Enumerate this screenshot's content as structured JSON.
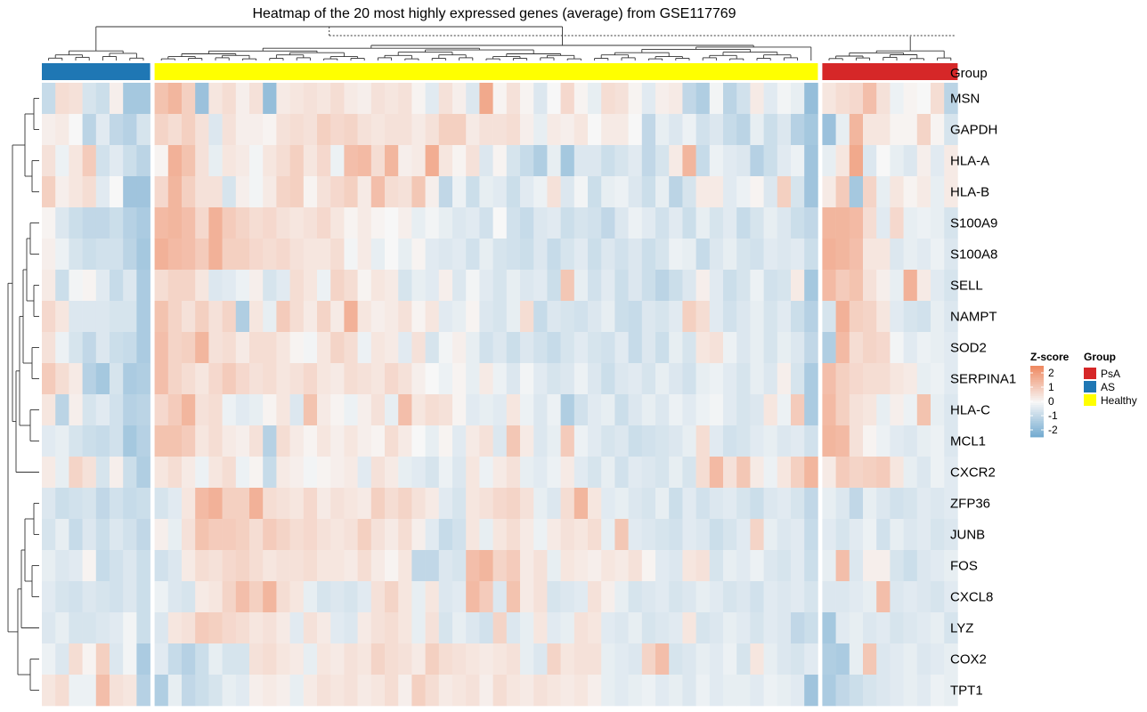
{
  "chart_data": {
    "type": "heatmap",
    "title": "Heatmap of the 20 most highly expressed genes (average) from GSE117769",
    "rows": [
      "MSN",
      "GAPDH",
      "HLA-A",
      "HLA-B",
      "S100A9",
      "S100A8",
      "SELL",
      "NAMPT",
      "SOD2",
      "SERPINA1",
      "HLA-C",
      "MCL1",
      "CXCR2",
      "ZFP36",
      "JUNB",
      "FOS",
      "CXCL8",
      "LYZ",
      "COX2",
      "TPT1"
    ],
    "annotation": {
      "label": "Group",
      "groups": [
        {
          "name": "AS",
          "n_samples": 8,
          "color": "#1F77B4"
        },
        {
          "name": "Healthy",
          "n_samples": 49,
          "color": "#FFFF00"
        },
        {
          "name": "PsA",
          "n_samples": 10,
          "color": "#D62728"
        }
      ]
    },
    "value_range": [
      -2.5,
      2.5
    ],
    "colors": {
      "low": "#6FA8CF",
      "mid": "#F7F7F7",
      "high": "#EF8A62"
    },
    "values": [
      [
        -0.9,
        0.6,
        0.5,
        -0.6,
        -0.8,
        0.2,
        -1.5,
        -1.5,
        1.2,
        1.5,
        0.9,
        -1.7,
        0.4,
        0.6,
        0.2,
        0.5,
        -1.8,
        0.3,
        0.4,
        0.5,
        0.4,
        0.6,
        0.3,
        0.2,
        0.5,
        0.4,
        0.5,
        0.1,
        -0.4,
        0.5,
        0.2,
        -0.5,
        1.8,
        0.1,
        0.5,
        0.1,
        -0.5,
        0.0,
        0.7,
        0.1,
        -0.3,
        0.6,
        0.5,
        0.1,
        -0.4,
        0.2,
        0.3,
        -1.0,
        -1.3,
        -0.1,
        -1.1,
        -0.7,
        0.3,
        -0.4,
        -0.1,
        -0.3,
        -1.8,
        0.4,
        0.6,
        0.7,
        1.3,
        0.5,
        -0.2,
        0.1,
        0.0,
        0.6,
        -1.1
      ],
      [
        0.2,
        0.3,
        0.0,
        -1.1,
        -0.4,
        -1.0,
        -1.2,
        -0.6,
        0.8,
        0.6,
        0.9,
        0.5,
        -0.5,
        0.5,
        0.2,
        0.2,
        0.1,
        0.5,
        0.6,
        0.5,
        0.9,
        0.7,
        0.8,
        0.5,
        0.4,
        0.5,
        0.5,
        0.3,
        0.5,
        0.9,
        0.9,
        0.3,
        0.5,
        0.5,
        0.6,
        0.2,
        -0.3,
        0.3,
        0.2,
        0.4,
        0.0,
        0.3,
        0.3,
        0.0,
        -1.0,
        -0.3,
        -0.5,
        -0.2,
        -0.7,
        -0.5,
        -0.9,
        -1.1,
        -0.3,
        -0.8,
        -0.5,
        -1.2,
        -1.5,
        -1.7,
        -0.3,
        1.5,
        0.4,
        0.4,
        0.1,
        0.1,
        0.8,
        0.1,
        -0.6
      ],
      [
        0.5,
        -0.2,
        0.4,
        1.0,
        -0.7,
        -0.4,
        -0.8,
        -1.1,
        0.1,
        1.6,
        1.2,
        0.5,
        -0.3,
        0.4,
        0.3,
        -0.1,
        0.4,
        0.6,
        0.9,
        0.4,
        0.7,
        -0.2,
        1.3,
        1.4,
        0.6,
        1.5,
        0.2,
        0.3,
        1.7,
        0.4,
        0.1,
        0.5,
        -0.5,
        0.1,
        -0.6,
        -0.9,
        -1.3,
        -0.3,
        -1.5,
        -0.5,
        -0.5,
        -0.8,
        -0.6,
        -0.4,
        -1.0,
        -0.6,
        0.3,
        1.5,
        -0.9,
        -0.2,
        -0.4,
        -0.5,
        -1.2,
        -0.8,
        -0.4,
        -0.2,
        -1.6,
        -0.3,
        0.4,
        1.8,
        -0.5,
        0.0,
        -0.3,
        -0.5,
        0.2,
        -0.4,
        0.3
      ],
      [
        0.9,
        0.2,
        0.4,
        0.6,
        -0.4,
        0.0,
        -1.6,
        -1.6,
        0.7,
        1.5,
        0.9,
        0.5,
        0.5,
        -0.6,
        0.2,
        -0.1,
        0.3,
        0.8,
        0.9,
        0.1,
        0.5,
        0.7,
        0.9,
        0.3,
        1.3,
        0.6,
        0.5,
        1.1,
        0.2,
        -1.0,
        -0.2,
        -0.8,
        -0.3,
        -0.4,
        -0.8,
        -0.4,
        -0.2,
        0.5,
        -0.5,
        -0.1,
        -0.8,
        -0.3,
        -0.2,
        -0.5,
        -0.8,
        -0.3,
        -1.1,
        -0.6,
        0.3,
        0.3,
        -0.4,
        -0.2,
        0.1,
        -0.5,
        0.9,
        -0.6,
        -1.6,
        0.3,
        1.0,
        -1.5,
        0.8,
        -0.3,
        0.4,
        0.1,
        0.3,
        -0.3,
        0.3
      ],
      [
        0.1,
        -0.5,
        -0.8,
        -1.0,
        -1.0,
        -0.8,
        -1.2,
        -1.4,
        1.4,
        1.5,
        1.3,
        0.7,
        1.6,
        1.0,
        0.8,
        0.6,
        0.7,
        0.5,
        0.4,
        0.5,
        0.7,
        0.4,
        0.1,
        0.3,
        0.1,
        0.0,
        0.2,
        -0.3,
        -0.1,
        -0.3,
        -0.5,
        -0.4,
        -0.7,
        0.0,
        -0.7,
        -0.9,
        -0.5,
        -0.4,
        -0.8,
        -0.6,
        -0.7,
        -1.0,
        -0.5,
        -0.2,
        -0.4,
        -0.7,
        -0.4,
        -0.8,
        -0.3,
        -0.6,
        -0.4,
        -0.9,
        -0.6,
        -0.3,
        -0.5,
        -0.8,
        -1.0,
        1.5,
        1.5,
        1.4,
        0.6,
        -0.4,
        0.7,
        -0.3,
        -0.2,
        -0.3,
        -0.6
      ],
      [
        0.2,
        -0.2,
        -0.6,
        -0.8,
        -0.7,
        -0.7,
        -1.1,
        -1.5,
        1.6,
        1.4,
        1.3,
        1.0,
        1.6,
        0.9,
        0.9,
        0.7,
        0.6,
        0.7,
        0.5,
        0.4,
        0.4,
        0.6,
        -0.1,
        0.3,
        -0.3,
        0.0,
        -0.3,
        0.1,
        -0.4,
        -0.5,
        -0.4,
        -0.7,
        -0.3,
        -0.6,
        -0.7,
        -0.8,
        -0.5,
        -0.9,
        -0.6,
        -0.4,
        -0.8,
        -0.5,
        -0.7,
        -0.5,
        -0.8,
        -0.6,
        -0.2,
        -0.3,
        -0.9,
        -0.5,
        -0.3,
        -0.6,
        -0.7,
        -0.4,
        -0.5,
        -0.4,
        -0.8,
        1.6,
        1.5,
        1.3,
        0.4,
        0.4,
        -0.5,
        -0.3,
        -0.4,
        -0.2,
        -0.5
      ],
      [
        0.3,
        -0.8,
        -0.1,
        0.1,
        -0.4,
        -0.9,
        -0.5,
        -1.4,
        0.6,
        0.8,
        0.8,
        0.4,
        -0.5,
        -0.4,
        -0.2,
        0.2,
        -0.6,
        -0.4,
        0.6,
        0.4,
        -0.2,
        0.8,
        0.6,
        0.1,
        0.4,
        0.3,
        -0.6,
        -0.3,
        -0.4,
        0.2,
        -0.5,
        -0.1,
        -0.4,
        -0.6,
        -0.3,
        -0.5,
        -0.4,
        -0.8,
        1.1,
        -0.3,
        -0.7,
        -0.4,
        -0.8,
        -0.5,
        -0.8,
        -1.1,
        -0.8,
        -0.5,
        0.2,
        -0.4,
        -0.8,
        -0.6,
        -0.2,
        -0.7,
        -0.6,
        0.3,
        -1.5,
        1.4,
        1.0,
        1.2,
        0.5,
        0.2,
        -0.3,
        1.6,
        0.3,
        -0.4,
        -0.6
      ],
      [
        0.7,
        0.4,
        -0.5,
        -0.5,
        -0.5,
        -0.6,
        -0.6,
        -1.4,
        1.2,
        0.8,
        0.5,
        0.9,
        0.5,
        0.8,
        -1.3,
        0.4,
        -0.3,
        1.0,
        0.6,
        0.3,
        0.8,
        0.3,
        1.6,
        0.4,
        0.2,
        0.3,
        0.5,
        0.1,
        0.4,
        -0.4,
        -0.3,
        0.1,
        -0.5,
        -0.6,
        -0.3,
        0.6,
        -0.9,
        -0.5,
        -0.6,
        -0.7,
        -0.5,
        -0.3,
        -0.8,
        -0.9,
        -0.5,
        -0.6,
        -0.4,
        0.9,
        0.6,
        -0.4,
        -0.7,
        -0.5,
        -0.3,
        -0.6,
        -0.4,
        -0.8,
        -1.2,
        -0.6,
        1.6,
        0.9,
        0.8,
        0.4,
        -0.4,
        -0.6,
        -0.7,
        -0.3,
        -0.5
      ],
      [
        0.5,
        -0.2,
        -0.6,
        -1.0,
        -0.5,
        -0.8,
        -0.9,
        -1.4,
        1.3,
        0.8,
        0.9,
        1.5,
        0.5,
        0.6,
        0.3,
        0.6,
        0.6,
        0.4,
        0.1,
        -0.1,
        0.4,
        0.8,
        0.6,
        -0.2,
        0.4,
        0.3,
        -0.4,
        0.5,
        -0.6,
        -0.1,
        0.2,
        -0.3,
        -0.7,
        -0.5,
        -0.8,
        -0.5,
        -0.7,
        -0.9,
        -0.6,
        -0.4,
        -0.6,
        -0.7,
        -0.4,
        -0.9,
        -0.5,
        -0.8,
        -0.3,
        -0.6,
        0.4,
        0.5,
        -0.2,
        -0.5,
        -0.3,
        -0.6,
        -0.3,
        -0.5,
        -1.0,
        -1.3,
        1.4,
        0.6,
        0.8,
        0.7,
        -0.1,
        -0.4,
        -0.2,
        -0.3,
        -0.4
      ],
      [
        1.0,
        0.6,
        0.3,
        -1.2,
        -1.5,
        -0.6,
        -1.4,
        -1.3,
        1.3,
        0.8,
        0.6,
        0.4,
        0.7,
        1.0,
        0.7,
        0.5,
        0.6,
        0.4,
        0.5,
        0.7,
        0.4,
        0.3,
        0.6,
        0.5,
        0.4,
        0.7,
        0.5,
        0.2,
        0.0,
        -0.2,
        0.1,
        -0.3,
        0.3,
        -0.2,
        -0.5,
        -0.1,
        -0.4,
        -0.6,
        -0.5,
        -0.2,
        -0.5,
        -0.8,
        -0.5,
        -0.4,
        -0.6,
        -0.3,
        -0.5,
        -0.7,
        -0.3,
        -0.2,
        -0.4,
        -0.6,
        -0.3,
        -0.5,
        0.2,
        -0.6,
        -1.4,
        1.3,
        0.9,
        0.7,
        0.6,
        0.6,
        0.4,
        0.3,
        -0.3,
        -0.2,
        -0.4
      ],
      [
        0.4,
        -1.1,
        0.2,
        -0.6,
        -0.4,
        -0.7,
        -1.2,
        -1.1,
        0.7,
        1.0,
        1.5,
        0.5,
        0.6,
        -0.2,
        -0.4,
        -0.3,
        0.1,
        0.4,
        -0.5,
        1.2,
        0.3,
        0.1,
        -0.2,
        0.2,
        0.5,
        -0.3,
        1.3,
        0.4,
        0.6,
        0.5,
        0.1,
        -0.4,
        -0.3,
        -0.4,
        0.4,
        -0.2,
        -0.5,
        -0.2,
        -1.3,
        -0.7,
        -0.4,
        -0.3,
        -0.8,
        -0.5,
        -0.3,
        -0.5,
        -0.2,
        -0.4,
        -0.2,
        -0.1,
        -0.4,
        -0.6,
        -0.5,
        0.4,
        -0.2,
        1.0,
        -1.4,
        1.4,
        0.9,
        0.5,
        0.4,
        -0.3,
        0.2,
        -0.2,
        1.2,
        -0.3,
        -0.5
      ],
      [
        -0.4,
        -0.3,
        -0.6,
        -0.8,
        -0.9,
        -0.7,
        -1.5,
        -1.2,
        1.2,
        1.2,
        1.0,
        0.4,
        0.6,
        0.3,
        0.2,
        0.5,
        -1.2,
        0.6,
        0.3,
        0.1,
        0.4,
        0.2,
        0.4,
        0.2,
        0.1,
        0.6,
        0.3,
        0.0,
        -0.3,
        0.1,
        -0.4,
        0.3,
        0.5,
        -0.5,
        1.1,
        0.3,
        -0.5,
        -0.3,
        1.0,
        -0.2,
        -0.4,
        -0.6,
        -0.5,
        -0.8,
        -0.7,
        -0.6,
        -0.5,
        -0.3,
        0.6,
        -0.4,
        -0.7,
        -0.6,
        -0.4,
        -0.3,
        -0.5,
        -0.4,
        -0.7,
        1.5,
        1.4,
        0.5,
        0.1,
        -0.2,
        -0.4,
        -0.5,
        -0.3,
        -0.2,
        -0.5
      ],
      [
        0.3,
        -0.3,
        0.8,
        0.5,
        -0.6,
        0.2,
        -0.8,
        -1.3,
        0.4,
        0.6,
        0.3,
        -0.2,
        0.4,
        0.6,
        -0.2,
        0.1,
        -0.9,
        0.3,
        0.2,
        -0.1,
        0.1,
        0.2,
        0.3,
        -0.4,
        0.5,
        0.3,
        -0.3,
        -0.4,
        -0.6,
        -0.2,
        -0.5,
        0.4,
        -0.2,
        0.3,
        0.5,
        -0.3,
        -0.4,
        -0.2,
        0.3,
        -0.4,
        -0.6,
        -0.3,
        -0.7,
        -0.4,
        -0.5,
        -0.6,
        -0.3,
        -0.6,
        0.6,
        1.4,
        0.5,
        1.1,
        0.3,
        -0.2,
        0.4,
        0.9,
        1.5,
        0.3,
        1.0,
        0.8,
        0.9,
        1.0,
        0.4,
        -0.3,
        -0.5,
        -0.2,
        -0.4
      ],
      [
        -0.5,
        -0.8,
        -0.7,
        -0.6,
        -1.0,
        -0.7,
        -0.9,
        -0.8,
        -0.6,
        -0.4,
        0.4,
        1.4,
        1.6,
        0.9,
        0.9,
        1.6,
        0.6,
        0.5,
        0.4,
        0.7,
        0.3,
        0.5,
        0.4,
        0.3,
        0.9,
        0.6,
        0.8,
        0.5,
        0.3,
        -0.4,
        -0.6,
        0.4,
        0.5,
        0.7,
        0.8,
        0.5,
        -0.3,
        -0.5,
        0.6,
        1.5,
        0.4,
        -0.4,
        -0.3,
        -0.5,
        -0.6,
        -0.3,
        -0.8,
        -0.4,
        -0.7,
        -0.5,
        -0.4,
        -0.6,
        -0.8,
        -0.5,
        -0.4,
        -0.6,
        -1.0,
        -0.3,
        -0.5,
        -1.0,
        -0.3,
        -0.5,
        -0.7,
        -0.6,
        -0.4,
        -0.5,
        -0.4
      ],
      [
        -0.6,
        -0.3,
        -0.9,
        -0.5,
        -0.8,
        -0.5,
        -0.7,
        -1.0,
        0.2,
        -0.3,
        0.5,
        1.2,
        1.0,
        1.0,
        0.9,
        0.6,
        1.0,
        0.8,
        0.6,
        0.7,
        0.5,
        0.4,
        0.5,
        0.9,
        0.5,
        0.3,
        0.6,
        0.2,
        -0.4,
        -0.9,
        -0.7,
        0.4,
        -0.3,
        0.4,
        0.6,
        0.3,
        -0.2,
        0.3,
        0.5,
        0.4,
        0.6,
        -0.3,
        1.1,
        -0.4,
        -0.5,
        -0.6,
        -0.7,
        -0.4,
        -0.5,
        -0.8,
        -0.6,
        -0.4,
        0.8,
        -0.3,
        -0.5,
        -0.4,
        -0.9,
        -0.4,
        -0.6,
        -0.4,
        -0.2,
        -0.7,
        -0.3,
        -0.5,
        -0.4,
        -0.6,
        -0.5
      ],
      [
        -0.3,
        -0.5,
        -0.4,
        0.1,
        -0.9,
        -0.7,
        -0.5,
        -0.8,
        -0.7,
        -0.5,
        0.3,
        0.6,
        0.5,
        0.7,
        0.8,
        0.6,
        0.4,
        0.5,
        0.5,
        0.6,
        0.4,
        0.4,
        0.3,
        0.6,
        0.3,
        0.1,
        0.4,
        -1.0,
        -1.0,
        -0.5,
        -0.6,
        1.3,
        1.5,
        0.8,
        1.0,
        0.3,
        0.5,
        -0.3,
        0.4,
        0.3,
        0.2,
        0.4,
        0.3,
        0.5,
        0.1,
        -0.4,
        -0.5,
        0.4,
        0.5,
        -0.6,
        -0.3,
        -0.4,
        -0.2,
        -0.5,
        -0.6,
        -0.4,
        -0.8,
        -0.3,
        1.3,
        -0.5,
        0.2,
        0.2,
        -0.6,
        -0.8,
        -0.5,
        -0.4,
        -0.3
      ],
      [
        -0.4,
        -0.6,
        -0.7,
        -0.5,
        -0.6,
        -0.7,
        -0.5,
        -0.8,
        -0.2,
        -0.5,
        -0.6,
        0.3,
        0.4,
        0.8,
        1.3,
        0.9,
        1.5,
        0.6,
        0.4,
        -0.3,
        -0.6,
        -0.5,
        -0.6,
        -0.4,
        0.5,
        0.8,
        0.4,
        -0.3,
        0.4,
        -0.5,
        -0.4,
        1.4,
        1.0,
        -0.5,
        1.2,
        0.3,
        0.5,
        -0.6,
        -0.5,
        -0.4,
        0.5,
        0.2,
        -0.3,
        -0.6,
        -0.5,
        -0.4,
        -0.6,
        -0.5,
        -0.3,
        -0.4,
        -0.6,
        -0.5,
        -0.7,
        -0.4,
        -0.5,
        -0.4,
        -0.6,
        -0.5,
        -0.5,
        -0.4,
        -0.3,
        1.3,
        -0.5,
        -0.4,
        -0.5,
        -0.6,
        -0.4
      ],
      [
        -0.5,
        -0.3,
        -0.6,
        -0.6,
        -0.5,
        -0.4,
        -0.1,
        -0.8,
        -0.5,
        0.4,
        0.5,
        1.0,
        0.9,
        0.7,
        0.6,
        0.4,
        0.5,
        0.3,
        -0.4,
        0.5,
        0.3,
        -0.4,
        -0.5,
        0.3,
        0.5,
        0.6,
        0.4,
        -0.3,
        0.5,
        -0.6,
        -0.3,
        -0.5,
        -0.7,
        0.8,
        -0.5,
        -0.3,
        0.4,
        -0.4,
        -0.3,
        0.5,
        0.4,
        -0.4,
        -0.5,
        -0.3,
        -0.6,
        -0.5,
        -0.4,
        0.4,
        -0.6,
        -0.5,
        -0.3,
        -0.4,
        -0.6,
        -0.4,
        -0.5,
        -1.0,
        -0.8,
        -1.5,
        -0.4,
        -0.3,
        -0.5,
        -0.4,
        -0.6,
        -0.5,
        -0.4,
        -0.3,
        -0.6
      ],
      [
        -0.2,
        -0.5,
        0.6,
        0.1,
        0.9,
        -0.5,
        -0.1,
        -1.4,
        -0.4,
        -0.9,
        -1.2,
        -0.8,
        -0.3,
        -0.6,
        -0.6,
        0.5,
        0.6,
        0.4,
        0.3,
        -0.3,
        0.4,
        0.3,
        0.5,
        0.4,
        0.8,
        0.6,
        0.5,
        0.3,
        0.9,
        0.6,
        0.5,
        0.4,
        0.3,
        0.4,
        0.5,
        -0.3,
        -0.5,
        0.8,
        0.4,
        0.5,
        0.5,
        -0.3,
        -0.4,
        -0.5,
        0.8,
        1.3,
        -0.6,
        -0.5,
        -0.3,
        -0.4,
        -0.2,
        -0.6,
        0.4,
        -0.3,
        -0.5,
        -0.6,
        -0.4,
        -1.3,
        -1.4,
        -0.3,
        1.1,
        -0.5,
        -0.4,
        -0.3,
        -0.5,
        -0.4,
        -0.3
      ],
      [
        0.4,
        0.6,
        -0.2,
        -0.2,
        1.3,
        0.5,
        0.4,
        -1.2,
        -1.3,
        -0.3,
        -1.0,
        -0.8,
        -0.6,
        -0.3,
        -0.4,
        0.2,
        0.3,
        0.2,
        -0.3,
        0.3,
        0.5,
        0.4,
        0.5,
        0.3,
        0.4,
        0.6,
        0.2,
        0.9,
        0.6,
        0.3,
        0.4,
        0.5,
        0.2,
        0.6,
        0.4,
        0.3,
        0.5,
        0.4,
        0.3,
        0.4,
        0.2,
        -0.3,
        -0.4,
        -0.3,
        -0.2,
        -0.4,
        -0.3,
        -0.5,
        -0.2,
        -0.4,
        -0.3,
        -0.3,
        -0.4,
        -0.2,
        -0.3,
        -0.4,
        -1.6,
        -1.4,
        -1.0,
        -0.8,
        -0.6,
        -0.5,
        -0.4,
        -0.3,
        -0.4,
        -0.2,
        -0.3
      ]
    ],
    "legend": {
      "scale_title": "Z-score",
      "scale_ticks": [
        "2",
        "1",
        "0",
        "-1",
        "-2"
      ],
      "scale_tick_values": [
        2,
        1,
        0,
        -1,
        -2
      ],
      "group_title": "Group",
      "group_entries": [
        "PsA",
        "AS",
        "Healthy"
      ]
    }
  }
}
